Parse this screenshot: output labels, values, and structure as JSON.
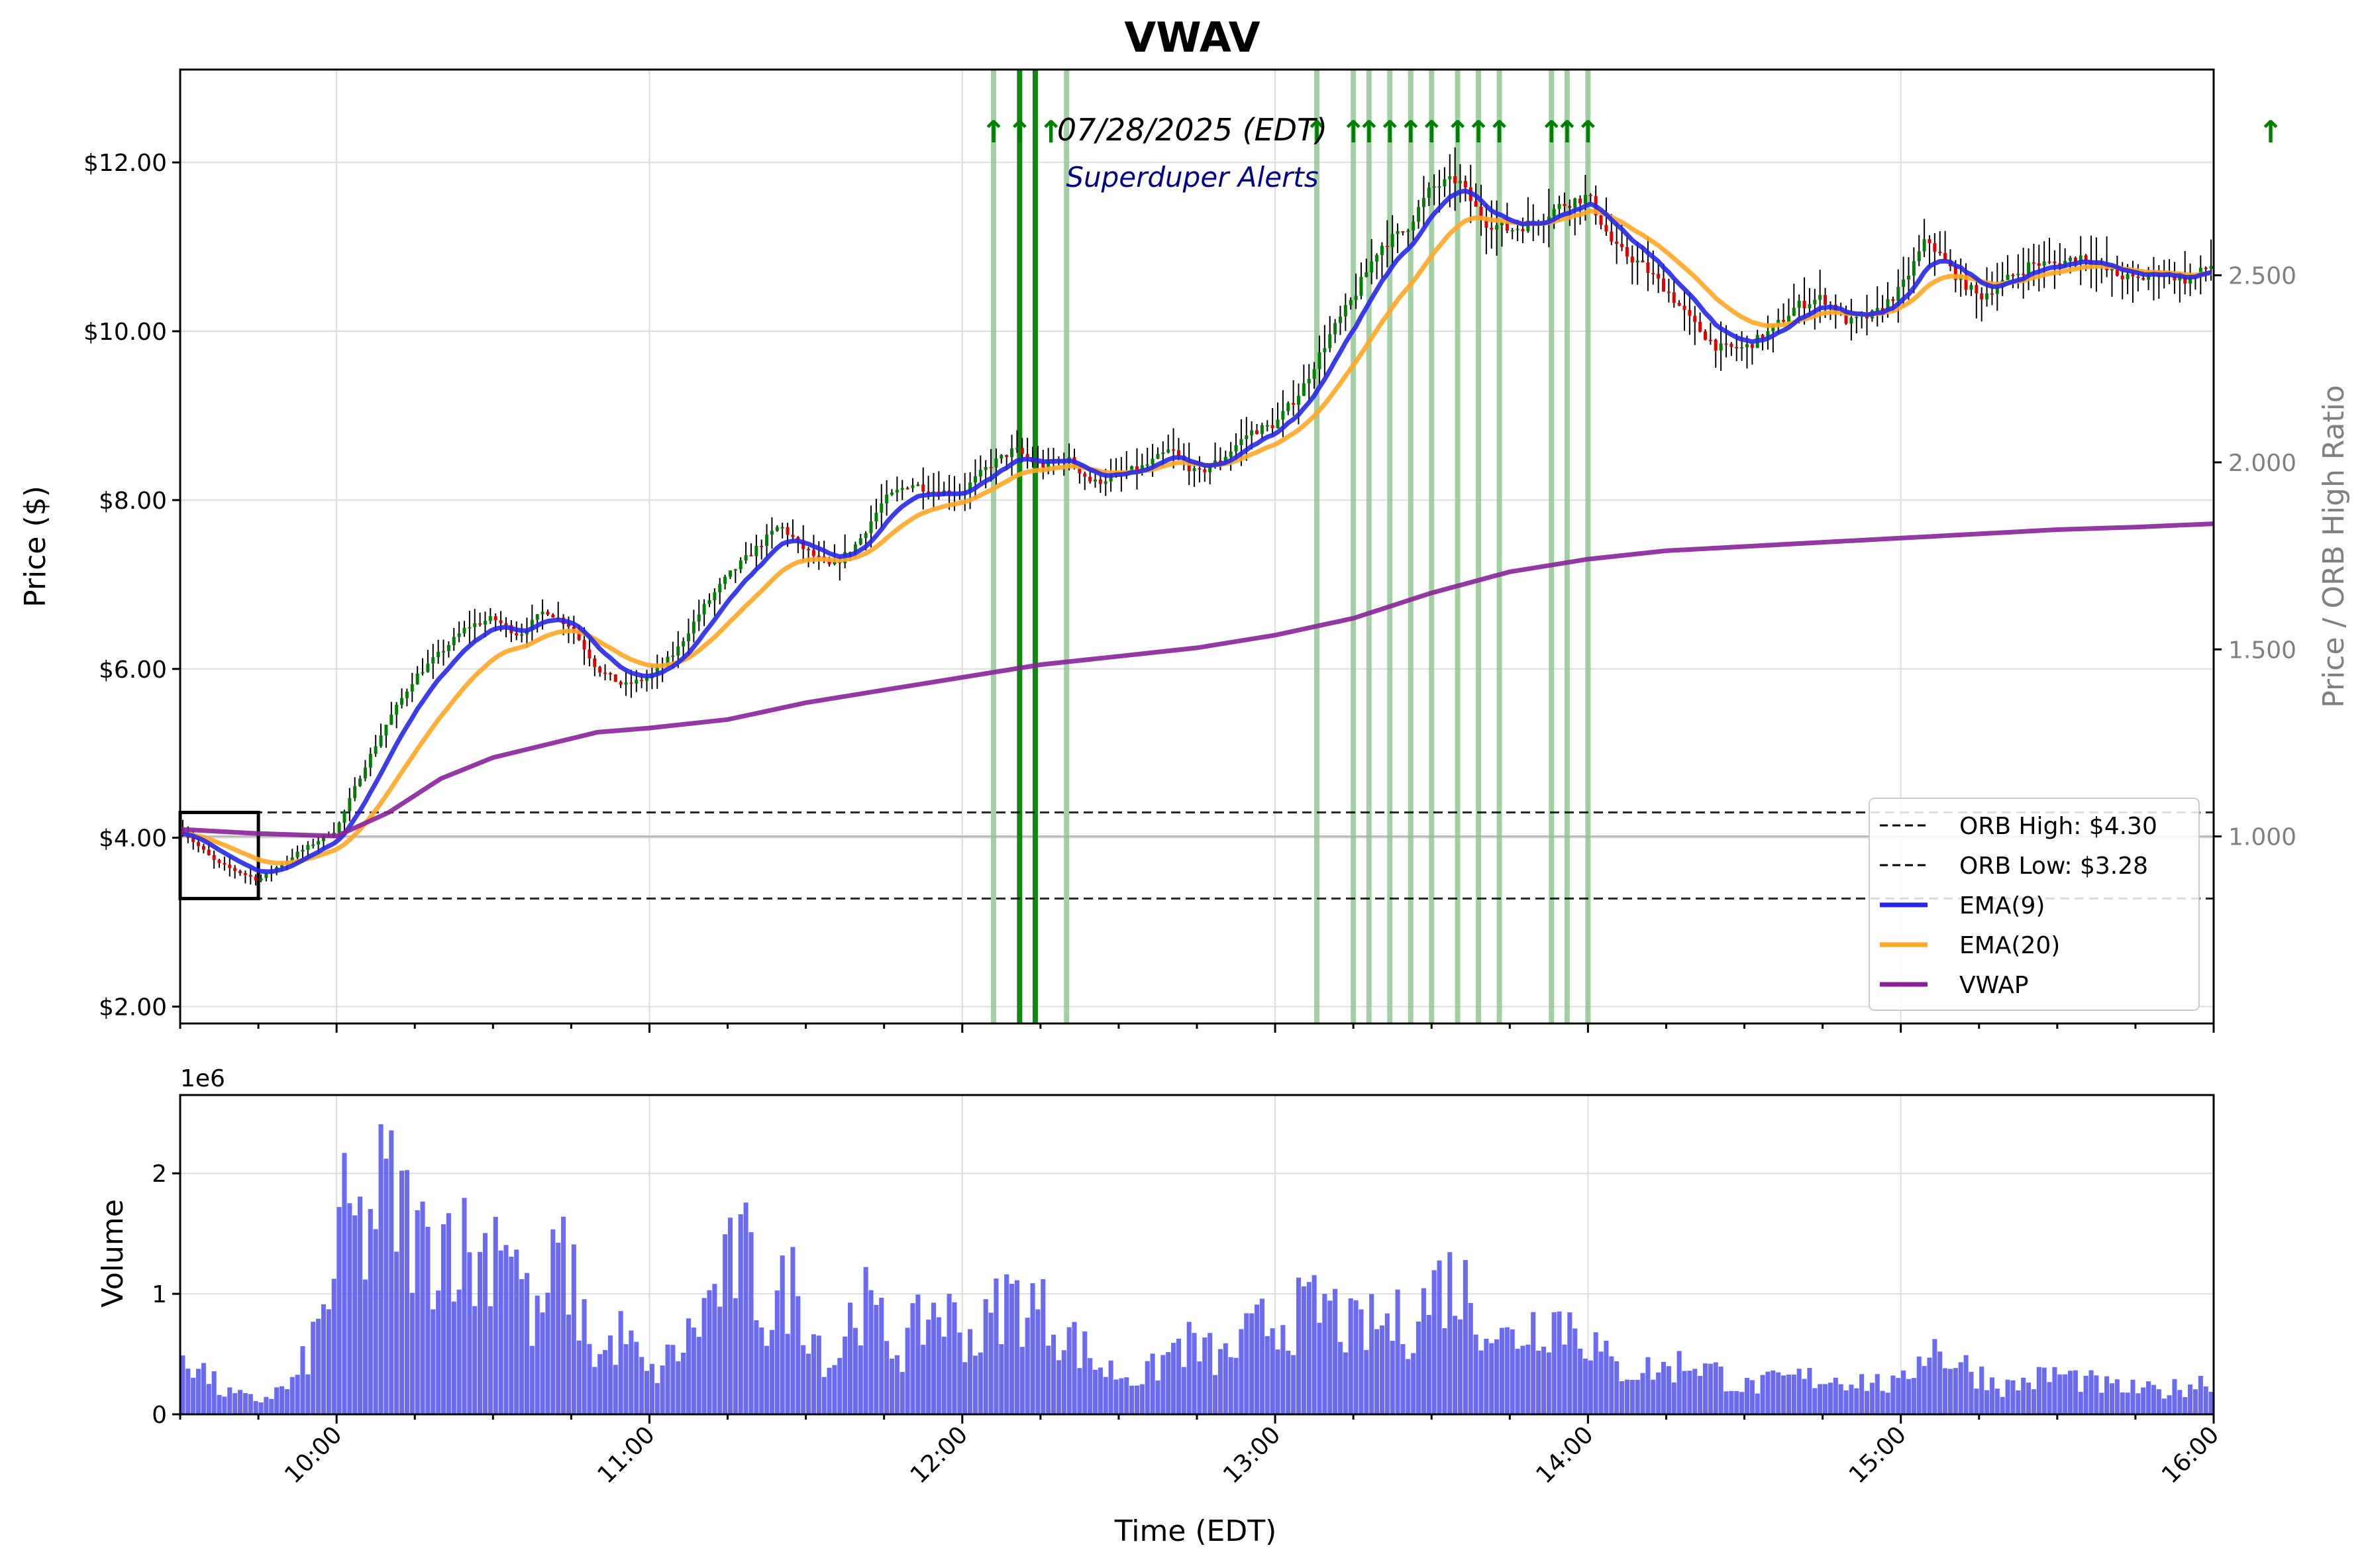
{
  "chart_data": {
    "type": "candlestick",
    "title": "VWAV",
    "date_label": "07/28/2025 (EDT)",
    "subtitle": "Superduper Alerts",
    "price_panel": {
      "ylabel": "Price ($)",
      "ylim": [
        1.8,
        13.1
      ],
      "yticks": [
        "$2.00",
        "$4.00",
        "$6.00",
        "$8.00",
        "$10.00",
        "$12.00"
      ],
      "ytick_values": [
        2,
        4,
        6,
        8,
        10,
        12
      ],
      "secondary_ylabel": "Price / ORB High Ratio",
      "secondary_ylim": [
        0.5,
        3.05
      ],
      "secondary_yticks": [
        "1.000",
        "1.500",
        "2.000",
        "2.500"
      ],
      "secondary_ytick_values": [
        1.0,
        1.5,
        2.0,
        2.5
      ],
      "orb_high": 4.3,
      "orb_low": 3.28,
      "orb_box": {
        "start": "09:30",
        "end": "09:45",
        "low": 3.28,
        "high": 4.3
      },
      "close_path": {
        "times": [
          "09:30",
          "09:37",
          "09:45",
          "09:52",
          "10:00",
          "10:05",
          "10:10",
          "10:15",
          "10:20",
          "10:25",
          "10:30",
          "10:35",
          "10:40",
          "10:45",
          "10:50",
          "10:55",
          "11:00",
          "11:05",
          "11:10",
          "11:15",
          "11:20",
          "11:25",
          "11:30",
          "11:35",
          "11:40",
          "11:45",
          "11:50",
          "11:55",
          "12:00",
          "12:05",
          "12:10",
          "12:15",
          "12:20",
          "12:25",
          "12:30",
          "12:35",
          "12:40",
          "12:45",
          "12:50",
          "12:55",
          "13:00",
          "13:05",
          "13:10",
          "13:15",
          "13:20",
          "13:25",
          "13:30",
          "13:35",
          "13:40",
          "13:45",
          "13:50",
          "13:55",
          "14:00",
          "14:05",
          "14:10",
          "14:15",
          "14:20",
          "14:25",
          "14:30",
          "14:35",
          "14:40",
          "14:45",
          "14:50",
          "14:55",
          "15:00",
          "15:05",
          "15:10",
          "15:15",
          "15:20",
          "15:25",
          "15:30",
          "15:35",
          "15:40",
          "15:45",
          "15:50",
          "15:55",
          "16:00"
        ],
        "values": [
          4.1,
          3.7,
          3.5,
          3.8,
          4.1,
          4.8,
          5.4,
          5.9,
          6.2,
          6.5,
          6.6,
          6.4,
          6.7,
          6.5,
          6.0,
          5.8,
          5.9,
          6.2,
          6.7,
          7.1,
          7.4,
          7.7,
          7.4,
          7.2,
          7.5,
          8.0,
          8.2,
          8.1,
          8.1,
          8.4,
          8.6,
          8.4,
          8.5,
          8.2,
          8.3,
          8.4,
          8.6,
          8.3,
          8.5,
          8.8,
          8.9,
          9.3,
          9.9,
          10.4,
          11.0,
          11.2,
          11.7,
          11.8,
          11.3,
          11.2,
          11.3,
          11.5,
          11.6,
          11.0,
          10.8,
          10.5,
          10.1,
          9.8,
          9.8,
          10.0,
          10.3,
          10.4,
          10.1,
          10.2,
          10.5,
          11.1,
          10.7,
          10.4,
          10.6,
          10.8,
          10.8,
          10.9,
          10.7,
          10.6,
          10.7,
          10.6,
          10.8
        ]
      },
      "vwap": {
        "times": [
          "09:30",
          "09:45",
          "10:00",
          "10:10",
          "10:20",
          "10:30",
          "10:40",
          "10:50",
          "11:00",
          "11:15",
          "11:30",
          "11:45",
          "12:00",
          "12:15",
          "12:30",
          "12:45",
          "13:00",
          "13:15",
          "13:30",
          "13:45",
          "14:00",
          "14:15",
          "14:30",
          "14:45",
          "15:00",
          "15:15",
          "15:30",
          "15:45",
          "16:00"
        ],
        "values": [
          4.1,
          4.05,
          4.02,
          4.3,
          4.7,
          4.95,
          5.1,
          5.25,
          5.3,
          5.4,
          5.6,
          5.75,
          5.9,
          6.05,
          6.15,
          6.25,
          6.4,
          6.6,
          6.9,
          7.15,
          7.3,
          7.4,
          7.45,
          7.5,
          7.55,
          7.6,
          7.65,
          7.68,
          7.72
        ]
      },
      "alert_lines": {
        "light": [
          "12:06",
          "12:20",
          "13:08",
          "13:15",
          "13:18",
          "13:22",
          "13:26",
          "13:30",
          "13:35",
          "13:39",
          "13:43",
          "13:53",
          "13:56",
          "14:00"
        ],
        "dark": [
          "12:11",
          "12:14"
        ]
      },
      "alert_arrow_times": [
        "12:06",
        "12:11",
        "12:17",
        "13:08",
        "13:15",
        "13:18",
        "13:22",
        "13:26",
        "13:30",
        "13:35",
        "13:39",
        "13:43",
        "13:53",
        "13:56",
        "14:00"
      ],
      "right_arrow": "↑"
    },
    "volume_panel": {
      "ylabel": "Volume",
      "scale_label": "1e6",
      "ylim": [
        0,
        2.65
      ],
      "yticks": [
        "0",
        "1",
        "2"
      ],
      "ytick_values": [
        0,
        1,
        2
      ],
      "volume_peaks": [
        [
          "09:30",
          0.75
        ],
        [
          "09:38",
          0.25
        ],
        [
          "09:45",
          0.15
        ],
        [
          "09:52",
          0.35
        ],
        [
          "09:57",
          1.0
        ],
        [
          "10:02",
          2.2
        ],
        [
          "10:05",
          1.9
        ],
        [
          "10:09",
          2.5
        ],
        [
          "10:13",
          2.2
        ],
        [
          "10:17",
          1.8
        ],
        [
          "10:22",
          2.1
        ],
        [
          "10:27",
          1.6
        ],
        [
          "10:32",
          2.3
        ],
        [
          "10:38",
          0.9
        ],
        [
          "10:43",
          1.8
        ],
        [
          "10:50",
          0.6
        ],
        [
          "10:55",
          0.9
        ],
        [
          "11:00",
          0.4
        ],
        [
          "11:07",
          0.8
        ],
        [
          "11:12",
          1.3
        ],
        [
          "11:18",
          1.8
        ],
        [
          "11:23",
          1.0
        ],
        [
          "11:27",
          1.5
        ],
        [
          "11:35",
          0.5
        ],
        [
          "11:40",
          1.3
        ],
        [
          "11:48",
          0.7
        ],
        [
          "11:55",
          1.2
        ],
        [
          "12:03",
          0.8
        ],
        [
          "12:08",
          1.3
        ],
        [
          "12:14",
          1.2
        ],
        [
          "12:20",
          0.9
        ],
        [
          "12:27",
          0.5
        ],
        [
          "12:35",
          0.4
        ],
        [
          "12:42",
          0.8
        ],
        [
          "12:50",
          0.6
        ],
        [
          "12:58",
          1.0
        ],
        [
          "13:05",
          1.1
        ],
        [
          "13:10",
          1.2
        ],
        [
          "13:15",
          0.9
        ],
        [
          "13:20",
          1.0
        ],
        [
          "13:26",
          1.0
        ],
        [
          "13:32",
          1.5
        ],
        [
          "13:36",
          1.4
        ],
        [
          "13:44",
          0.8
        ],
        [
          "13:52",
          1.1
        ],
        [
          "13:58",
          1.0
        ],
        [
          "14:05",
          0.5
        ],
        [
          "14:15",
          0.5
        ],
        [
          "14:20",
          0.6
        ],
        [
          "14:30",
          0.3
        ],
        [
          "14:40",
          0.4
        ],
        [
          "14:50",
          0.4
        ],
        [
          "15:00",
          0.3
        ],
        [
          "15:05",
          0.8
        ],
        [
          "15:10",
          0.6
        ],
        [
          "15:20",
          0.3
        ],
        [
          "15:30",
          0.45
        ],
        [
          "15:40",
          0.3
        ],
        [
          "15:50",
          0.25
        ],
        [
          "16:00",
          0.4
        ]
      ]
    },
    "xaxis": {
      "xlabel": "Time (EDT)",
      "xlim": [
        "09:30",
        "16:00"
      ],
      "ticks": [
        "10:00",
        "11:00",
        "12:00",
        "13:00",
        "14:00",
        "15:00",
        "16:00"
      ]
    },
    "legend": {
      "placement": "lower-right",
      "items": [
        {
          "label": "ORB High: $4.30",
          "style": "dashed",
          "color": "#000000"
        },
        {
          "label": "ORB Low: $3.28",
          "style": "dashed",
          "color": "#000000"
        },
        {
          "label": "EMA(9)",
          "style": "solid",
          "color": "#2828e6"
        },
        {
          "label": "EMA(20)",
          "style": "solid",
          "color": "#ffa726"
        },
        {
          "label": "VWAP",
          "style": "solid",
          "color": "#882299"
        }
      ]
    },
    "colors": {
      "up": "#008000",
      "down": "#e00000",
      "wick": "#000000",
      "ema9": "#2828e6",
      "ema20": "#ffa726",
      "vwap": "#882299",
      "volume": "#5050f0",
      "alert_light": "#8bc48b",
      "alert_dark": "#108810",
      "arrow": "#008000"
    },
    "grid": true
  }
}
